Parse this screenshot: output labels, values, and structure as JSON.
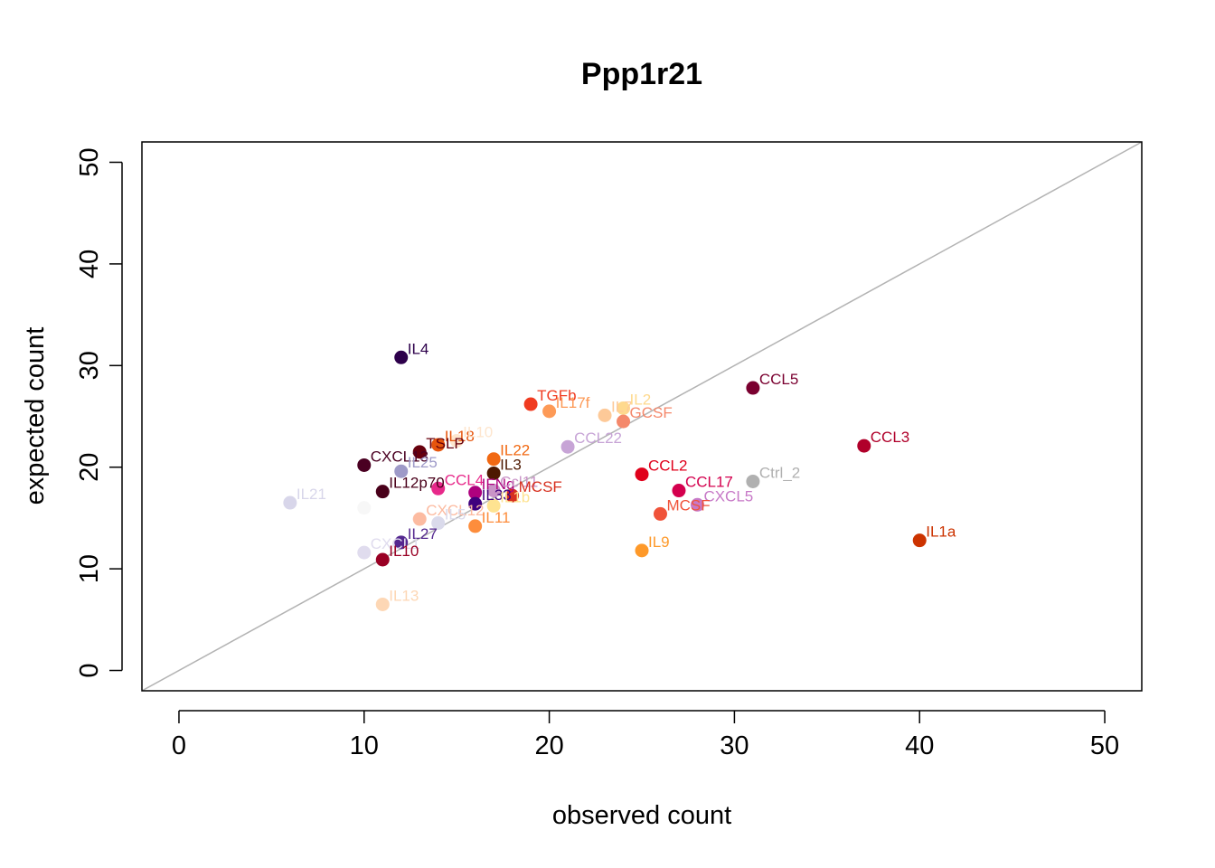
{
  "chart_data": {
    "type": "scatter",
    "title": "Ppp1r21",
    "xlabel": "observed count",
    "ylabel": "expected count",
    "xlim": [
      -2,
      52
    ],
    "ylim": [
      -2,
      52
    ],
    "xticks": [
      "0",
      "10",
      "20",
      "30",
      "40",
      "50"
    ],
    "yticks": [
      "0",
      "10",
      "20",
      "30",
      "40",
      "50"
    ],
    "reference_line": "y = x",
    "reference_line_color": "#b3b3b3",
    "grid": false,
    "legend": "none",
    "points": [
      {
        "label": "IL4",
        "x": 12,
        "y": 30.8,
        "color": "#2d004b"
      },
      {
        "label": "CCL5",
        "x": 31,
        "y": 27.8,
        "color": "#7a0030"
      },
      {
        "label": "TGFb",
        "x": 19,
        "y": 26.2,
        "color": "#f03b20"
      },
      {
        "label": "IL17f",
        "x": 20,
        "y": 25.5,
        "color": "#fd9a57"
      },
      {
        "label": "IL7",
        "x": 23,
        "y": 25.1,
        "color": "#fdc998"
      },
      {
        "label": "IL2",
        "x": 24,
        "y": 25.8,
        "color": "#fed98e"
      },
      {
        "label": "GCSF",
        "x": 24,
        "y": 24.5,
        "color": "#f4886b"
      },
      {
        "label": "IL18",
        "x": 14,
        "y": 22.2,
        "color": "#e6550d"
      },
      {
        "label": "IL10",
        "x": 15,
        "y": 22.6,
        "color": "#fee6ce"
      },
      {
        "label": "TSLP",
        "x": 13,
        "y": 21.5,
        "color": "#67000d"
      },
      {
        "label": "CCL22",
        "x": 21,
        "y": 22.0,
        "color": "#c7a4d6"
      },
      {
        "label": "CCL3",
        "x": 37,
        "y": 22.1,
        "color": "#b0002a"
      },
      {
        "label": "IL22",
        "x": 17,
        "y": 20.8,
        "color": "#f16913"
      },
      {
        "label": "CXCL13",
        "x": 10,
        "y": 20.2,
        "color": "#4a0022"
      },
      {
        "label": "IL25",
        "x": 12,
        "y": 19.6,
        "color": "#9e9ac8"
      },
      {
        "label": "IL3",
        "x": 17,
        "y": 19.4,
        "color": "#4d1800"
      },
      {
        "label": "CCL2",
        "x": 25,
        "y": 19.3,
        "color": "#e0001b"
      },
      {
        "label": "Ctrl_2",
        "x": 31,
        "y": 18.6,
        "color": "#b0b0b0"
      },
      {
        "label": "CCL4",
        "x": 14,
        "y": 17.9,
        "color": "#e7298a"
      },
      {
        "label": "IL12p70",
        "x": 11,
        "y": 17.6,
        "color": "#49001a"
      },
      {
        "label": "IFNg",
        "x": 16,
        "y": 17.5,
        "color": "#ae017e"
      },
      {
        "label": "Ccl11",
        "x": 17,
        "y": 17.7,
        "color": "#c994c7"
      },
      {
        "label": "MCSF",
        "x": 18,
        "y": 17.2,
        "color": "#d7301f"
      },
      {
        "label": "CCL17",
        "x": 27,
        "y": 17.7,
        "color": "#d4004e"
      },
      {
        "label": "IL21",
        "x": 6,
        "y": 16.5,
        "color": "#d8d6ea"
      },
      {
        "label": "IL33",
        "x": 16,
        "y": 16.4,
        "color": "#3f007d"
      },
      {
        "label": "IL1b",
        "x": 17,
        "y": 16.2,
        "color": "#fee391"
      },
      {
        "label": "",
        "x": 10,
        "y": 16.0,
        "color": "#f7f7f7"
      },
      {
        "label": "CXCL5",
        "x": 28,
        "y": 16.3,
        "color": "#c779c7"
      },
      {
        "label": "MCSF",
        "x": 26,
        "y": 15.4,
        "color": "#f0533a"
      },
      {
        "label": "CXCL12",
        "x": 13,
        "y": 14.9,
        "color": "#fcbba1"
      },
      {
        "label": "IL5",
        "x": 14,
        "y": 14.5,
        "color": "#dadaeb"
      },
      {
        "label": "IL11",
        "x": 16,
        "y": 14.2,
        "color": "#fd8d3c"
      },
      {
        "label": "IL27",
        "x": 12,
        "y": 12.6,
        "color": "#54278f"
      },
      {
        "label": "IL1a",
        "x": 40,
        "y": 12.8,
        "color": "#cc3300"
      },
      {
        "label": "CXCL1",
        "x": 10,
        "y": 11.6,
        "color": "#e0dcee"
      },
      {
        "label": "IL9",
        "x": 25,
        "y": 11.8,
        "color": "#fe9929"
      },
      {
        "label": "IL10",
        "x": 11,
        "y": 10.9,
        "color": "#990024"
      },
      {
        "label": "IL13",
        "x": 11,
        "y": 6.5,
        "color": "#fdd7b5"
      }
    ]
  }
}
